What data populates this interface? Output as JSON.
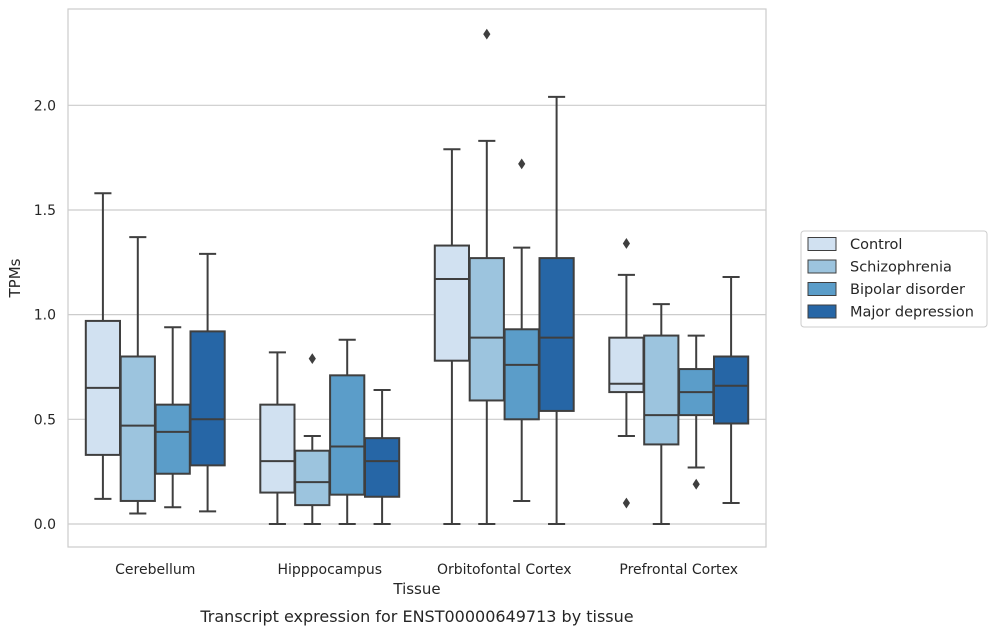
{
  "caption": "Transcript expression for ENST00000649713 by tissue",
  "chart_data": {
    "type": "box",
    "title": "",
    "xlabel": "Tissue",
    "ylabel": "TPMs",
    "ylim": [
      -0.11,
      2.46
    ],
    "yticks": [
      "0.0",
      "0.5",
      "1.0",
      "1.5",
      "2.0"
    ],
    "ytick_values": [
      0,
      0.5,
      1.0,
      1.5,
      2.0
    ],
    "grid": "horizontal",
    "legend_position": "right",
    "categories": [
      "Cerebellum",
      "Hipppocampus",
      "Orbitofontal Cortex",
      "Prefrontal Cortex"
    ],
    "series": [
      {
        "name": "Control",
        "color": "#d1e1f1",
        "boxes": [
          {
            "whislo": 0.12,
            "q1": 0.33,
            "med": 0.65,
            "q3": 0.97,
            "whishi": 1.58,
            "fliers": []
          },
          {
            "whislo": 0.0,
            "q1": 0.15,
            "med": 0.3,
            "q3": 0.57,
            "whishi": 0.82,
            "fliers": []
          },
          {
            "whislo": 0.0,
            "q1": 0.78,
            "med": 1.17,
            "q3": 1.33,
            "whishi": 1.79,
            "fliers": []
          },
          {
            "whislo": 0.42,
            "q1": 0.63,
            "med": 0.67,
            "q3": 0.89,
            "whishi": 1.19,
            "fliers": [
              0.1,
              1.34
            ]
          }
        ]
      },
      {
        "name": "Schizophrenia",
        "color": "#9cc4de",
        "boxes": [
          {
            "whislo": 0.05,
            "q1": 0.11,
            "med": 0.47,
            "q3": 0.8,
            "whishi": 1.37,
            "fliers": []
          },
          {
            "whislo": 0.0,
            "q1": 0.09,
            "med": 0.2,
            "q3": 0.35,
            "whishi": 0.42,
            "fliers": [
              0.79
            ]
          },
          {
            "whislo": 0.0,
            "q1": 0.59,
            "med": 0.89,
            "q3": 1.27,
            "whishi": 1.83,
            "fliers": [
              2.34
            ]
          },
          {
            "whislo": 0.0,
            "q1": 0.38,
            "med": 0.52,
            "q3": 0.9,
            "whishi": 1.05,
            "fliers": []
          }
        ]
      },
      {
        "name": "Bipolar disorder",
        "color": "#5b9dc9",
        "boxes": [
          {
            "whislo": 0.08,
            "q1": 0.24,
            "med": 0.44,
            "q3": 0.57,
            "whishi": 0.94,
            "fliers": []
          },
          {
            "whislo": 0.0,
            "q1": 0.14,
            "med": 0.37,
            "q3": 0.71,
            "whishi": 0.88,
            "fliers": []
          },
          {
            "whislo": 0.11,
            "q1": 0.5,
            "med": 0.76,
            "q3": 0.93,
            "whishi": 1.32,
            "fliers": [
              1.72
            ]
          },
          {
            "whislo": 0.27,
            "q1": 0.52,
            "med": 0.63,
            "q3": 0.74,
            "whishi": 0.9,
            "fliers": [
              0.19
            ]
          }
        ]
      },
      {
        "name": "Major depression",
        "color": "#2666a6",
        "boxes": [
          {
            "whislo": 0.06,
            "q1": 0.28,
            "med": 0.5,
            "q3": 0.92,
            "whishi": 1.29,
            "fliers": []
          },
          {
            "whislo": 0.0,
            "q1": 0.13,
            "med": 0.3,
            "q3": 0.41,
            "whishi": 0.64,
            "fliers": []
          },
          {
            "whislo": 0.0,
            "q1": 0.54,
            "med": 0.89,
            "q3": 1.27,
            "whishi": 2.04,
            "fliers": []
          },
          {
            "whislo": 0.1,
            "q1": 0.48,
            "med": 0.66,
            "q3": 0.8,
            "whishi": 1.18,
            "fliers": []
          }
        ]
      }
    ]
  }
}
